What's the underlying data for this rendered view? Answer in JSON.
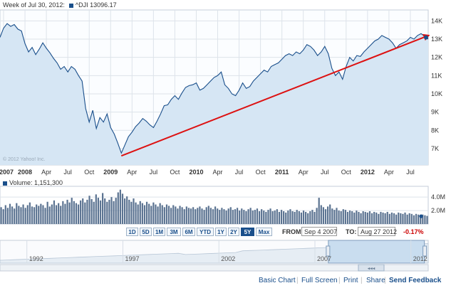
{
  "header": {
    "week_label": "Week of Jul 30, 2012:",
    "series_label": "^DJI 13096.17",
    "watermark": "© 2012 Yahoo! Inc."
  },
  "volume": {
    "label": "Volume: 1,151,300"
  },
  "chart_data": [
    {
      "type": "line",
      "series": [
        {
          "name": "^DJI",
          "color": "#1a4f8b"
        }
      ],
      "x_ticks": [
        "2007",
        "2008",
        "Apr",
        "Jul",
        "Oct",
        "2009",
        "Apr",
        "Jul",
        "Oct",
        "2010",
        "Apr",
        "Jul",
        "Oct",
        "2011",
        "Apr",
        "Jul",
        "Oct",
        "2012",
        "Apr",
        "Jul"
      ],
      "x_tick_months": [
        0,
        3,
        6,
        9,
        12,
        15,
        18,
        21,
        24,
        27,
        30,
        33,
        36,
        39,
        42,
        45,
        48,
        51,
        54,
        57
      ],
      "y_ticks": [
        "7K",
        "8K",
        "9K",
        "10K",
        "11K",
        "12K",
        "13K",
        "14K"
      ],
      "y_tick_values": [
        7000,
        8000,
        9000,
        10000,
        11000,
        12000,
        13000,
        14000
      ],
      "ylim": [
        6100,
        14600
      ],
      "xlim_months": [
        -0.5,
        59.5
      ],
      "points": [
        [
          -0.5,
          13100
        ],
        [
          0,
          13600
        ],
        [
          0.5,
          13850
        ],
        [
          1,
          13700
        ],
        [
          1.5,
          13800
        ],
        [
          2,
          13550
        ],
        [
          2.5,
          13450
        ],
        [
          3,
          12750
        ],
        [
          3.5,
          12300
        ],
        [
          4,
          12550
        ],
        [
          4.5,
          12150
        ],
        [
          5,
          12450
        ],
        [
          5.5,
          12800
        ],
        [
          6,
          12500
        ],
        [
          6.5,
          12250
        ],
        [
          7,
          11950
        ],
        [
          7.5,
          11700
        ],
        [
          8,
          11350
        ],
        [
          8.5,
          11500
        ],
        [
          9,
          11200
        ],
        [
          9.5,
          11500
        ],
        [
          10,
          11350
        ],
        [
          10.5,
          11000
        ],
        [
          11,
          10700
        ],
        [
          11.5,
          9200
        ],
        [
          12,
          8450
        ],
        [
          12.5,
          9100
        ],
        [
          13,
          8100
        ],
        [
          13.5,
          8700
        ],
        [
          14,
          8450
        ],
        [
          14.5,
          8900
        ],
        [
          15,
          8150
        ],
        [
          15.5,
          7800
        ],
        [
          16,
          7300
        ],
        [
          16.5,
          6750
        ],
        [
          17,
          7200
        ],
        [
          17.5,
          7650
        ],
        [
          18,
          7900
        ],
        [
          18.5,
          8200
        ],
        [
          19,
          8400
        ],
        [
          19.5,
          8650
        ],
        [
          20,
          8500
        ],
        [
          20.5,
          8300
        ],
        [
          21,
          8150
        ],
        [
          21.5,
          8500
        ],
        [
          22,
          8900
        ],
        [
          22.5,
          9350
        ],
        [
          23,
          9400
        ],
        [
          23.5,
          9700
        ],
        [
          24,
          9900
        ],
        [
          24.5,
          9700
        ],
        [
          25,
          10050
        ],
        [
          25.5,
          10350
        ],
        [
          26,
          10450
        ],
        [
          26.5,
          10500
        ],
        [
          27,
          10600
        ],
        [
          27.5,
          10200
        ],
        [
          28,
          10300
        ],
        [
          28.5,
          10500
        ],
        [
          29,
          10700
        ],
        [
          29.5,
          10900
        ],
        [
          30,
          11000
        ],
        [
          30.5,
          11200
        ],
        [
          31,
          10500
        ],
        [
          31.5,
          10300
        ],
        [
          32,
          10000
        ],
        [
          32.5,
          9900
        ],
        [
          33,
          10200
        ],
        [
          33.5,
          10600
        ],
        [
          34,
          10300
        ],
        [
          34.5,
          10400
        ],
        [
          35,
          10700
        ],
        [
          35.5,
          10900
        ],
        [
          36,
          11100
        ],
        [
          36.5,
          11300
        ],
        [
          37,
          11200
        ],
        [
          37.5,
          11500
        ],
        [
          38,
          11600
        ],
        [
          38.5,
          11700
        ],
        [
          39,
          11900
        ],
        [
          39.5,
          12100
        ],
        [
          40,
          12200
        ],
        [
          40.5,
          12100
        ],
        [
          41,
          12300
        ],
        [
          41.5,
          12200
        ],
        [
          42,
          12400
        ],
        [
          42.5,
          12700
        ],
        [
          43,
          12600
        ],
        [
          43.5,
          12400
        ],
        [
          44,
          12100
        ],
        [
          44.5,
          12300
        ],
        [
          45,
          12600
        ],
        [
          45.5,
          12200
        ],
        [
          46,
          11400
        ],
        [
          46.5,
          11000
        ],
        [
          47,
          11200
        ],
        [
          47.5,
          10800
        ],
        [
          48,
          11500
        ],
        [
          48.5,
          12000
        ],
        [
          49,
          11800
        ],
        [
          49.5,
          12100
        ],
        [
          50,
          12050
        ],
        [
          50.5,
          12300
        ],
        [
          51,
          12500
        ],
        [
          51.5,
          12700
        ],
        [
          52,
          12900
        ],
        [
          52.5,
          13000
        ],
        [
          53,
          13200
        ],
        [
          53.5,
          13100
        ],
        [
          54,
          13000
        ],
        [
          54.5,
          12800
        ],
        [
          55,
          12500
        ],
        [
          55.5,
          12700
        ],
        [
          56,
          12800
        ],
        [
          56.5,
          12900
        ],
        [
          57,
          13100
        ],
        [
          57.5,
          13000
        ],
        [
          58,
          13200
        ],
        [
          58.5,
          13300
        ],
        [
          59,
          13150
        ],
        [
          59.5,
          13000
        ]
      ],
      "trend_line": {
        "from": [
          16.5,
          6600
        ],
        "to": [
          59.5,
          13100
        ],
        "color": "#dd1111"
      },
      "end_marker_value": 13096.17
    },
    {
      "type": "bar",
      "name": "Volume",
      "y_ticks": [
        "4.0M",
        "2.0M"
      ],
      "y_tick_values": [
        4.0,
        2.0
      ],
      "ylim": [
        0,
        5.6
      ],
      "values": [
        2.5,
        2.2,
        2.8,
        2.4,
        3.0,
        2.6,
        2.3,
        3.1,
        2.7,
        2.5,
        2.9,
        2.4,
        2.8,
        3.2,
        2.6,
        2.5,
        2.9,
        2.7,
        3.0,
        2.8,
        2.4,
        3.3,
        2.6,
        2.9,
        3.5,
        2.8,
        3.1,
        2.7,
        3.4,
        3.0,
        3.6,
        3.2,
        3.9,
        3.4,
        3.1,
        2.9,
        3.5,
        3.8,
        3.2,
        3.6,
        4.2,
        3.7,
        3.3,
        4.4,
        3.9,
        3.5,
        4.6,
        3.8,
        3.3,
        3.6,
        4.0,
        3.4,
        3.9,
        4.7,
        5.1,
        4.5,
        3.8,
        4.1,
        3.6,
        3.3,
        3.8,
        3.2,
        2.9,
        3.4,
        3.1,
        2.8,
        3.3,
        3.0,
        2.7,
        3.2,
        2.9,
        2.6,
        3.1,
        2.8,
        2.5,
        2.9,
        2.7,
        2.4,
        2.8,
        2.6,
        2.3,
        2.7,
        2.5,
        2.2,
        2.6,
        2.4,
        2.3,
        2.5,
        2.2,
        2.4,
        2.6,
        2.3,
        2.1,
        2.5,
        2.7,
        2.4,
        2.2,
        2.6,
        2.3,
        2.1,
        2.4,
        2.2,
        2.0,
        2.3,
        2.5,
        2.1,
        2.2,
        2.4,
        2.0,
        2.3,
        2.1,
        1.9,
        2.2,
        2.4,
        2.0,
        2.1,
        2.3,
        1.9,
        2.2,
        2.0,
        1.8,
        2.1,
        2.3,
        1.9,
        2.0,
        2.2,
        1.8,
        2.1,
        1.9,
        1.7,
        2.0,
        2.2,
        1.9,
        1.8,
        2.1,
        1.9,
        1.7,
        2.0,
        1.8,
        1.6,
        1.9,
        2.1,
        1.8,
        2.4,
        3.9,
        2.8,
        2.5,
        2.2,
        2.6,
        2.9,
        2.3,
        2.1,
        2.4,
        2.0,
        1.9,
        2.2,
        2.1,
        1.8,
        2.0,
        1.9,
        1.7,
        2.0,
        1.8,
        1.6,
        1.9,
        1.8,
        1.7,
        1.9,
        1.6,
        1.8,
        1.7,
        1.5,
        1.8,
        1.7,
        1.6,
        1.8,
        1.5,
        1.7,
        1.6,
        1.4,
        1.7,
        1.6,
        1.5,
        1.7,
        1.4,
        1.6,
        1.5,
        1.3,
        1.5,
        1.4,
        1.2,
        1.4,
        1.3,
        1.2
      ],
      "end_marker_value": 1.15
    }
  ],
  "range_buttons": [
    {
      "label": "1D",
      "selected": false
    },
    {
      "label": "5D",
      "selected": false
    },
    {
      "label": "1M",
      "selected": false
    },
    {
      "label": "3M",
      "selected": false
    },
    {
      "label": "6M",
      "selected": false
    },
    {
      "label": "YTD",
      "selected": false
    },
    {
      "label": "1Y",
      "selected": false
    },
    {
      "label": "2Y",
      "selected": false
    },
    {
      "label": "5Y",
      "selected": true
    },
    {
      "label": "Max",
      "selected": false
    }
  ],
  "date_range": {
    "from_label": "FROM:",
    "from_value": "Sep 4 2007",
    "to_label": "TO:",
    "to_value": "Aug 27 2012",
    "change": "-0.17%"
  },
  "navigator": {
    "labels": [
      "1992",
      "1997",
      "2002",
      "2007",
      "2012"
    ],
    "label_years": [
      1992,
      1997,
      2002,
      2007,
      2012
    ],
    "year_range": [
      1990.6,
      2012.9
    ],
    "window_years": [
      2007.7,
      2012.7
    ],
    "scroll_glyph": "◂◂◂"
  },
  "footer": {
    "basic_chart": "Basic Chart",
    "full_screen": "Full Screen",
    "print": "Print",
    "share": "Share",
    "send_feedback": "Send Feedback"
  },
  "colors": {
    "line": "#1a4f8b",
    "fill": "#d6e6f4",
    "trend": "#dd1111",
    "grid": "#dde3ea",
    "volume_bar": "#5b7391",
    "navigator_fill": "#e6edf4",
    "navigator_window": "#c9ddef",
    "selected_button": "#1a4f8b",
    "change_negative": "#cc0000"
  }
}
